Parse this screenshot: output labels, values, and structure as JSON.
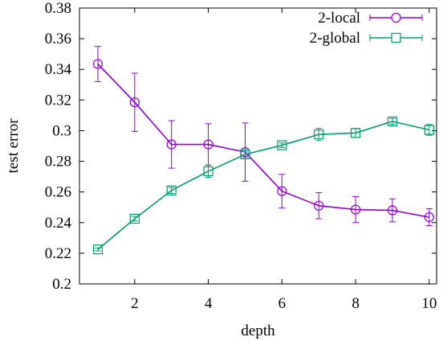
{
  "chart_data": {
    "type": "line",
    "xlabel": "depth",
    "ylabel": "test error",
    "xlim": [
      0.5,
      10.2
    ],
    "ylim": [
      0.2,
      0.38
    ],
    "xticks": [
      2,
      4,
      6,
      8,
      10
    ],
    "yticks": [
      0.2,
      0.22,
      0.24,
      0.26,
      0.28,
      0.3,
      0.32,
      0.34,
      0.36,
      0.38
    ],
    "ytick_labels": [
      "0.2",
      "0.22",
      "0.24",
      "0.26",
      "0.28",
      "0.3",
      "0.32",
      "0.34",
      "0.36",
      "0.38"
    ],
    "xtick_labels": [
      "2",
      "4",
      "6",
      "8",
      "10"
    ],
    "grid": false,
    "legend_position": "top-right",
    "series": [
      {
        "name": "2-local",
        "color": "#9400d3",
        "marker": "circle",
        "x": [
          1,
          2,
          3,
          4,
          5,
          6,
          7,
          8,
          9,
          10
        ],
        "y": [
          0.3435,
          0.3185,
          0.291,
          0.291,
          0.286,
          0.2605,
          0.251,
          0.2485,
          0.248,
          0.2435
        ],
        "err": [
          0.0115,
          0.019,
          0.0155,
          0.0135,
          0.019,
          0.011,
          0.0085,
          0.0085,
          0.0075,
          0.0055
        ]
      },
      {
        "name": "2-global",
        "color": "#009e73",
        "marker": "square",
        "x": [
          1,
          2,
          3,
          4,
          5,
          6,
          7,
          8,
          9,
          10
        ],
        "y": [
          0.2225,
          0.2425,
          0.261,
          0.2735,
          0.2845,
          0.2905,
          0.2975,
          0.2985,
          0.306,
          0.3005
        ],
        "err": [
          0.001,
          0.0015,
          0.002,
          0.004,
          0.002,
          0.0015,
          0.004,
          0.003,
          0.002,
          0.0035
        ]
      }
    ]
  }
}
